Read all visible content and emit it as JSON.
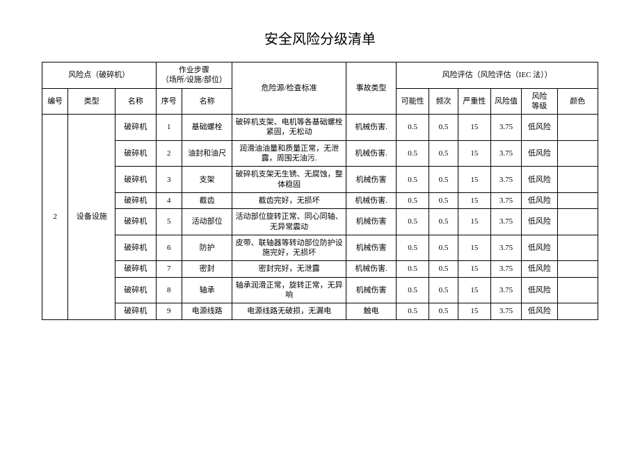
{
  "title": "安全风险分级清单",
  "header": {
    "risk_point_group": "风险点（破碎机）",
    "work_step_group": "作业步骤\n（场所/设施/部位）",
    "hazard_source": "危险源/检查标准",
    "accident_type": "事故类型",
    "risk_eval_group": "风险评估（风险评估（IEC 法））",
    "no": "编号",
    "type": "类型",
    "name": "名称",
    "seq": "序号",
    "step_name": "名称",
    "possibility": "可能性",
    "frequency": "频次",
    "severity": "严重性",
    "risk_value": "风险值",
    "risk_level": "风险\n等级",
    "color": "颜色"
  },
  "group": {
    "no": "2",
    "type": "设备设施"
  },
  "rows": [
    {
      "name": "破碎机",
      "seq": "1",
      "step_name": "基础螺栓",
      "hazard": "破碎机支架、电机等各基础螺栓紧固，无松动",
      "accident": "机械伤害.",
      "possibility": "0.5",
      "frequency": "0.5",
      "severity": "15",
      "value": "3.75",
      "level": "低风险",
      "color": ""
    },
    {
      "name": "破碎机",
      "seq": "2",
      "step_name": "油封和油尺",
      "hazard": "润滑油油量和质量正常，无泄露，周围无油污.",
      "accident": "机械伤害.",
      "possibility": "0.5",
      "frequency": "0.5",
      "severity": "15",
      "value": "3.75",
      "level": "低风险",
      "color": ""
    },
    {
      "name": "破碎机",
      "seq": "3",
      "step_name": "支架",
      "hazard": "破碎机支架无生锈、无腐蚀，整体稳固",
      "accident": "机械伤害",
      "possibility": "0.5",
      "frequency": "0.5",
      "severity": "15",
      "value": "3.75",
      "level": "低风险",
      "color": ""
    },
    {
      "name": "破碎机",
      "seq": "4",
      "step_name": "截齿",
      "hazard": "截齿完好，无损坏",
      "accident": "机械伤害.",
      "possibility": "0.5",
      "frequency": "0.5",
      "severity": "15",
      "value": "3.75",
      "level": "低风险",
      "color": ""
    },
    {
      "name": "破碎机",
      "seq": "5",
      "step_name": "活动部位",
      "hazard": "活动部位旋转正常、同心同轴、无异常震动",
      "accident": "机械伤害",
      "possibility": "0.5",
      "frequency": "0.5",
      "severity": "15",
      "value": "3.75",
      "level": "低风险",
      "color": ""
    },
    {
      "name": "破碎机",
      "seq": "6",
      "step_name": "防护",
      "hazard": "皮带、联轴器等转动部位防护设施完好，无损坏",
      "accident": "机械伤害",
      "possibility": "0.5",
      "frequency": "0.5",
      "severity": "15",
      "value": "3.75",
      "level": "低风险",
      "color": ""
    },
    {
      "name": "破碎机",
      "seq": "7",
      "step_name": "密封",
      "hazard": "密封完好，无泄露",
      "accident": "机械伤害.",
      "possibility": "0.5",
      "frequency": "0.5",
      "severity": "15",
      "value": "3.75",
      "level": "低风险",
      "color": ""
    },
    {
      "name": "破碎机",
      "seq": "8",
      "step_name": "轴承",
      "hazard": "轴承润滑正常，旋转正常，无异响",
      "accident": "机械伤害",
      "possibility": "0.5",
      "frequency": "0.5",
      "severity": "15",
      "value": "3.75",
      "level": "低风险",
      "color": ""
    },
    {
      "name": "破碎机",
      "seq": "9",
      "step_name": "电源线路",
      "hazard": "电源线路无破损，无漏电",
      "accident": "触电",
      "possibility": "0.5",
      "frequency": "0.5",
      "severity": "15",
      "value": "3.75",
      "level": "低风险",
      "color": ""
    }
  ]
}
